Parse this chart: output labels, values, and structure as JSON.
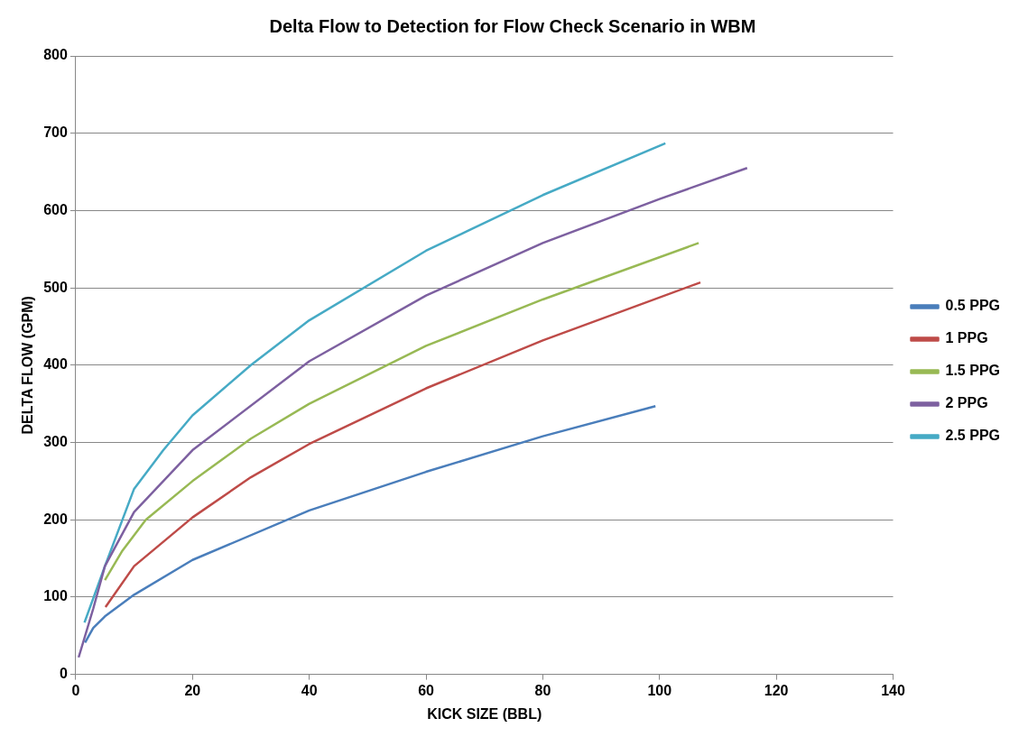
{
  "chart_data": {
    "type": "line",
    "title": "Delta Flow to Detection for Flow Check Scenario in WBM",
    "xlabel": "KICK SIZE (BBL)",
    "ylabel": "DELTA FLOW (GPM)",
    "xlim": [
      0,
      140
    ],
    "xticks": [
      0,
      20,
      40,
      60,
      80,
      100,
      120,
      140
    ],
    "ylim": [
      0,
      800
    ],
    "yticks": [
      0,
      100,
      200,
      300,
      400,
      500,
      600,
      700,
      800
    ],
    "grid": "y",
    "legend": "right",
    "marker": "none",
    "line_style": "solid",
    "series": [
      {
        "name": "0.5 PPG",
        "color": "#4a7ebb",
        "x": [
          1.6,
          3,
          5,
          10,
          20,
          40,
          60,
          80,
          99.3
        ],
        "values": [
          41,
          60,
          75,
          103,
          148,
          212,
          262,
          308,
          347
        ]
      },
      {
        "name": "1 PPG",
        "color": "#be4b48",
        "x": [
          5.1,
          10,
          20,
          30,
          40,
          60,
          80,
          107
        ],
        "values": [
          87,
          140,
          203,
          255,
          298,
          370,
          432,
          507
        ]
      },
      {
        "name": "1.5 PPG",
        "color": "#98b954",
        "x": [
          5,
          8,
          12,
          20,
          30,
          40,
          60,
          80,
          106.7
        ],
        "values": [
          122,
          160,
          200,
          250,
          305,
          350,
          425,
          485,
          558
        ]
      },
      {
        "name": "2 PPG",
        "color": "#7d60a0",
        "x": [
          0.5,
          3,
          5,
          10,
          20,
          40,
          60,
          80,
          100,
          115
        ],
        "values": [
          22,
          85,
          140,
          210,
          290,
          405,
          490,
          558,
          615,
          655
        ]
      },
      {
        "name": "2.5 PPG",
        "color": "#46aac5",
        "x": [
          1.5,
          5,
          10,
          15,
          20,
          30,
          40,
          60,
          80,
          101
        ],
        "values": [
          67,
          140,
          240,
          290,
          335,
          400,
          458,
          548,
          620,
          687
        ]
      }
    ]
  }
}
